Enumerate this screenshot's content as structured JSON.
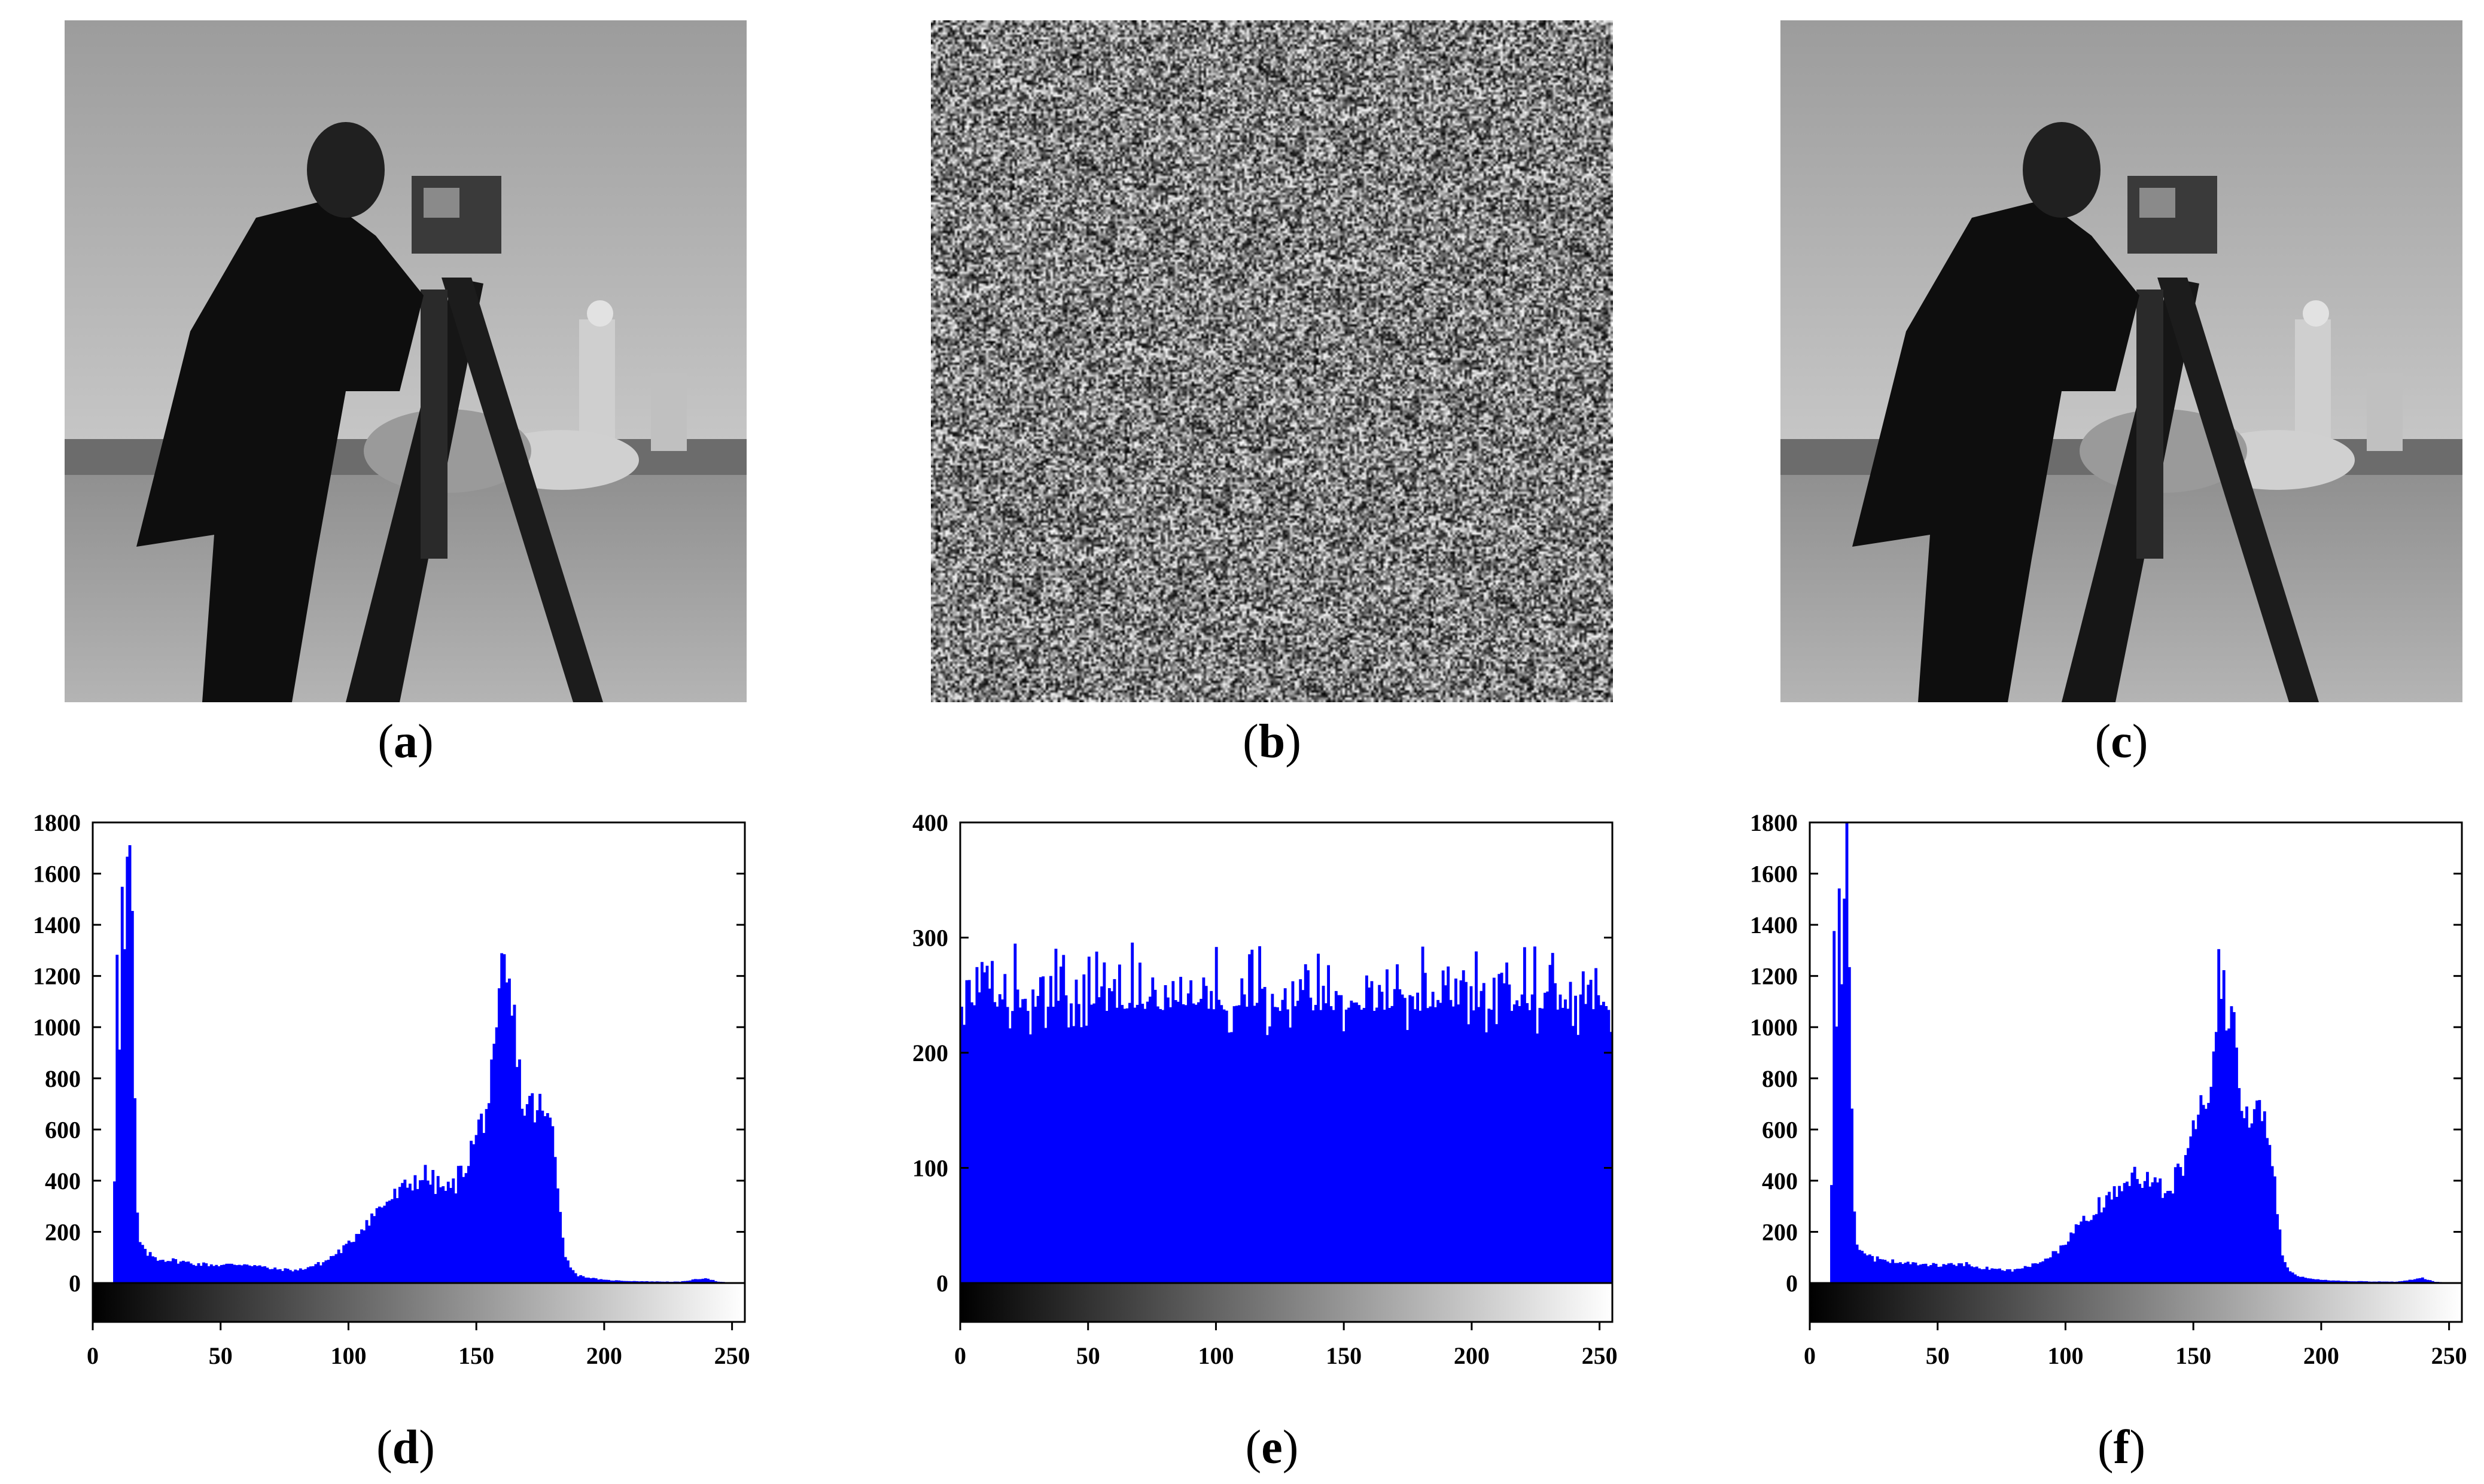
{
  "panels": [
    {
      "id": "a",
      "caption_open": "(",
      "caption_letter": "a",
      "caption_close": ")",
      "kind": "original-image",
      "subject": "cameraman"
    },
    {
      "id": "b",
      "caption_open": "(",
      "caption_letter": "b",
      "caption_close": ")",
      "kind": "encrypted-image",
      "subject": "noise"
    },
    {
      "id": "c",
      "caption_open": "(",
      "caption_letter": "c",
      "caption_close": ")",
      "kind": "decrypted-image",
      "subject": "cameraman"
    },
    {
      "id": "d",
      "caption_open": "(",
      "caption_letter": "d",
      "caption_close": ")",
      "kind": "histogram"
    },
    {
      "id": "e",
      "caption_open": "(",
      "caption_letter": "e",
      "caption_close": ")",
      "kind": "histogram"
    },
    {
      "id": "f",
      "caption_open": "(",
      "caption_letter": "f",
      "caption_close": ")",
      "kind": "histogram"
    }
  ],
  "colors": {
    "bar": "#0000ff",
    "axis": "#000000",
    "background": "#ffffff"
  },
  "chart_data": [
    {
      "panel": "d",
      "type": "bar",
      "title": "",
      "xlabel": "",
      "ylabel": "",
      "xlim": [
        0,
        255
      ],
      "ylim": [
        0,
        1800
      ],
      "xticks": [
        0,
        50,
        100,
        150,
        200,
        250
      ],
      "yticks": [
        0,
        200,
        400,
        600,
        800,
        1000,
        1200,
        1400,
        1600,
        1800
      ],
      "colorbar": "grayscale 0-255",
      "grid": false,
      "profile_x": [
        0,
        7,
        8,
        9,
        10,
        11,
        12,
        13,
        14,
        15,
        16,
        17,
        18,
        20,
        25,
        30,
        40,
        50,
        60,
        70,
        80,
        90,
        100,
        105,
        110,
        115,
        120,
        125,
        130,
        135,
        140,
        145,
        150,
        155,
        158,
        160,
        162,
        164,
        166,
        168,
        170,
        175,
        180,
        183,
        185,
        188,
        190,
        195,
        200,
        210,
        220,
        230,
        240,
        245,
        250,
        255
      ],
      "profile_y": [
        0,
        0,
        420,
        1400,
        1000,
        1480,
        1300,
        1560,
        1680,
        1340,
        700,
        260,
        160,
        120,
        95,
        90,
        75,
        70,
        75,
        55,
        50,
        80,
        150,
        220,
        270,
        320,
        350,
        400,
        420,
        380,
        360,
        450,
        570,
        720,
        900,
        1210,
        1180,
        1050,
        950,
        700,
        690,
        680,
        600,
        300,
        100,
        50,
        30,
        20,
        12,
        8,
        6,
        5,
        20,
        5,
        2,
        0
      ]
    },
    {
      "panel": "e",
      "type": "bar",
      "title": "",
      "xlabel": "",
      "ylabel": "",
      "xlim": [
        0,
        255
      ],
      "ylim": [
        0,
        400
      ],
      "xticks": [
        0,
        50,
        100,
        150,
        200,
        250
      ],
      "yticks": [
        0,
        100,
        200,
        300,
        400
      ],
      "colorbar": "grayscale 0-255",
      "grid": false,
      "profile_x": [
        0,
        255
      ],
      "profile_y": [
        256,
        256
      ],
      "range_y": [
        215,
        300
      ]
    },
    {
      "panel": "f",
      "type": "bar",
      "title": "",
      "xlabel": "",
      "ylabel": "",
      "xlim": [
        0,
        255
      ],
      "ylim": [
        0,
        1800
      ],
      "xticks": [
        0,
        50,
        100,
        150,
        200,
        250
      ],
      "yticks": [
        0,
        200,
        400,
        600,
        800,
        1000,
        1200,
        1400,
        1600,
        1800
      ],
      "colorbar": "grayscale 0-255",
      "grid": false,
      "profile_x": [
        0,
        7,
        8,
        9,
        10,
        11,
        12,
        13,
        14,
        15,
        16,
        17,
        18,
        20,
        25,
        30,
        40,
        50,
        60,
        70,
        80,
        90,
        100,
        105,
        110,
        115,
        120,
        125,
        130,
        135,
        140,
        145,
        150,
        155,
        158,
        160,
        162,
        164,
        166,
        168,
        170,
        175,
        180,
        183,
        185,
        188,
        190,
        195,
        200,
        210,
        220,
        230,
        240,
        245,
        250,
        255
      ],
      "profile_y": [
        0,
        0,
        420,
        1400,
        1000,
        1480,
        1300,
        1560,
        1680,
        1340,
        700,
        260,
        160,
        120,
        95,
        90,
        75,
        70,
        75,
        55,
        50,
        80,
        150,
        220,
        270,
        320,
        350,
        400,
        420,
        380,
        360,
        450,
        570,
        720,
        900,
        1210,
        1180,
        1050,
        950,
        700,
        690,
        680,
        600,
        300,
        100,
        50,
        30,
        20,
        12,
        8,
        6,
        5,
        20,
        5,
        2,
        0
      ]
    }
  ]
}
